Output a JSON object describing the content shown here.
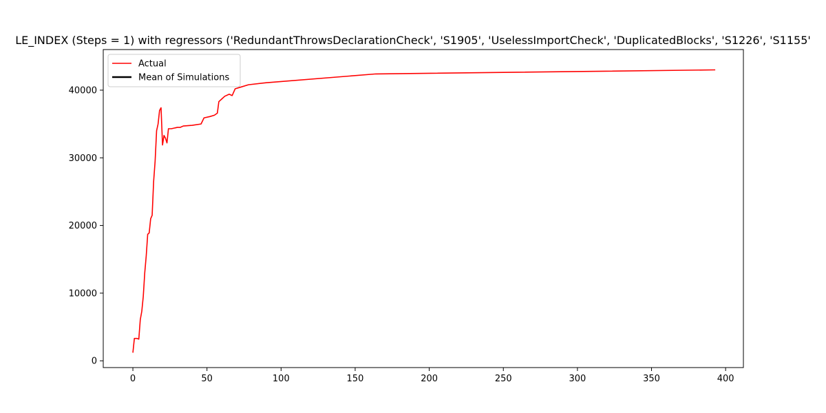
{
  "chart_data": {
    "type": "line",
    "title": "LE_INDEX (Steps = 1) with regressors ('RedundantThrowsDeclarationCheck', 'S1905', 'UselessImportCheck', 'DuplicatedBlocks', 'S1226', 'S1155'",
    "xlabel": "",
    "ylabel": "",
    "xlim": [
      -20,
      412
    ],
    "ylim": [
      -1000,
      46000
    ],
    "xticks": [
      0,
      50,
      100,
      150,
      200,
      250,
      300,
      350,
      400
    ],
    "yticks": [
      0,
      10000,
      20000,
      30000,
      40000
    ],
    "grid": false,
    "legend_placement": "top-left",
    "legend": [
      {
        "name": "Actual",
        "color": "#ff0000"
      },
      {
        "name": "Mean of Simulations",
        "color": "#000000"
      }
    ],
    "series": [
      {
        "name": "Actual",
        "color": "#ff0000",
        "points": [
          [
            0,
            1200
          ],
          [
            1,
            3300
          ],
          [
            2,
            3300
          ],
          [
            3,
            3300
          ],
          [
            4,
            3200
          ],
          [
            5,
            6100
          ],
          [
            6,
            7300
          ],
          [
            7,
            9500
          ],
          [
            8,
            13000
          ],
          [
            9,
            15500
          ],
          [
            10,
            18700
          ],
          [
            11,
            18900
          ],
          [
            12,
            21000
          ],
          [
            13,
            21500
          ],
          [
            14,
            26500
          ],
          [
            15,
            29500
          ],
          [
            16,
            34000
          ],
          [
            17,
            35000
          ],
          [
            18,
            37000
          ],
          [
            19,
            37400
          ],
          [
            20,
            31900
          ],
          [
            21,
            33300
          ],
          [
            22,
            32900
          ],
          [
            23,
            32200
          ],
          [
            24,
            34300
          ],
          [
            26,
            34300
          ],
          [
            28,
            34400
          ],
          [
            30,
            34500
          ],
          [
            32,
            34500
          ],
          [
            34,
            34700
          ],
          [
            40,
            34800
          ],
          [
            46,
            35000
          ],
          [
            48,
            35900
          ],
          [
            52,
            36100
          ],
          [
            55,
            36300
          ],
          [
            57,
            36600
          ],
          [
            58,
            38300
          ],
          [
            60,
            38700
          ],
          [
            62,
            39100
          ],
          [
            65,
            39400
          ],
          [
            67,
            39200
          ],
          [
            69,
            40200
          ],
          [
            72,
            40400
          ],
          [
            78,
            40800
          ],
          [
            90,
            41100
          ],
          [
            164,
            42400
          ],
          [
            393,
            43000
          ]
        ]
      },
      {
        "name": "Mean of Simulations",
        "color": "#000000",
        "points": []
      }
    ]
  }
}
